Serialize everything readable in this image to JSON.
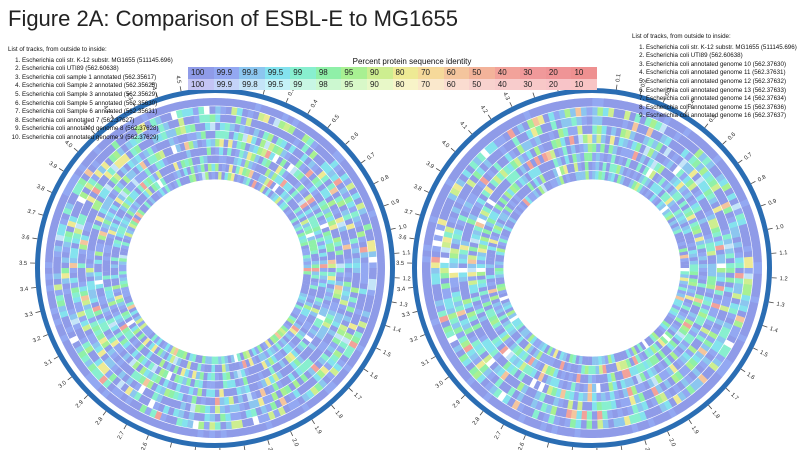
{
  "figure_title": "Figure 2A: Comparison of ESBL-E to MG1655",
  "legend": {
    "title": "Percent protein sequence identity",
    "values": [
      "100",
      "99.9",
      "99.8",
      "99.5",
      "99",
      "98",
      "95",
      "90",
      "80",
      "70",
      "60",
      "50",
      "40",
      "30",
      "20",
      "10"
    ],
    "row1_colors": [
      "#8f9be8",
      "#93a8f2",
      "#8cc6ef",
      "#84e2ee",
      "#88efcf",
      "#8ff0a8",
      "#a8f092",
      "#cdee90",
      "#eeea94",
      "#f6d99a",
      "#f4c59d",
      "#f3b39a",
      "#f2a29a",
      "#f0999a",
      "#ef9496",
      "#ee9090"
    ],
    "row2_colors": [
      "#c4c4f4",
      "#c4d3f8",
      "#c4e4f8",
      "#c4f2f8",
      "#c8f6e4",
      "#ccf8d0",
      "#d8f8c8",
      "#e8f8c8",
      "#f8f4c8",
      "#fae8cc",
      "#fadcd0",
      "#f8d2ce",
      "#f8cccc",
      "#f8c8c8",
      "#f8c4c8",
      "#f8c4c4"
    ]
  },
  "left_tracks": {
    "header": "List of tracks, from outside to inside:",
    "items": [
      "Escherichia coli str. K-12 substr. MG1655 (511145.696)",
      "Escherichia coli UTI89 (562.60638)",
      "Escherichia coli sample 1 annotated (562.35617)",
      "Escherichia coli Sample 2 annotated (562.35625)",
      "Escherichia coli Sample 3 annotated (562.35629)",
      "Escherichia coli Sample 5 annotated (562.35630)",
      "Escherichia coli Sample 6 annotated (562.35631)",
      "Escherichia coli annotated 7 (562.37627)",
      "Escherichia coli annotated genome 8 (562.37628)",
      "Escherichia coli annotated genome 9 (562.37629)"
    ]
  },
  "right_tracks": {
    "header": "List of tracks, from outside to inside:",
    "items": [
      "Escherichia coli str. K-12 substr. MG1655 (511145.696)",
      "Escherichia coli UTI89 (562.60638)",
      "Escherichia coli annotated genome 10 (562.37630)",
      "Escherichia coli annotated genome 11 (562.37631)",
      "Escherichia coli annotated genome 12 (562.37632)",
      "Escherichia coli annotated genome 13 (562.37633)",
      "Escherichia coli annotated genome 14 (562.37634)",
      "Escherichia coli annotated genome 15 (562.37636)",
      "Escherichia coli annotated genome 16 (562.37637)"
    ]
  },
  "circle_colors": {
    "backbone": "#2a6db3",
    "ticks": "#4a4a4a"
  },
  "left_circle": {
    "track_count": 10,
    "tick_labels": [
      "0.0",
      "0.1",
      "0.2",
      "0.3",
      "0.4",
      "0.5",
      "0.6",
      "0.7",
      "0.8",
      "0.9",
      "1.0",
      "1.1",
      "1.2",
      "1.3",
      "1.4",
      "1.5",
      "1.6",
      "1.7",
      "1.8",
      "1.9",
      "2.0",
      "2.1",
      "2.2",
      "2.3",
      "2.4",
      "2.5",
      "2.6",
      "2.7",
      "2.8",
      "2.9",
      "3.0",
      "3.1",
      "3.2",
      "3.3",
      "3.4",
      "3.5",
      "3.6",
      "3.7",
      "3.8",
      "3.9",
      "4.0",
      "4.1",
      "4.2",
      "4.3",
      "4.4",
      "4.5"
    ]
  },
  "right_circle": {
    "track_count": 9,
    "tick_labels": [
      "0.0",
      "0.1",
      "0.2",
      "0.3",
      "0.4",
      "0.5",
      "0.6",
      "0.7",
      "0.8",
      "0.9",
      "1.0",
      "1.1",
      "1.2",
      "1.3",
      "1.4",
      "1.5",
      "1.6",
      "1.7",
      "1.8",
      "1.9",
      "2.0",
      "2.1",
      "2.2",
      "2.3",
      "2.4",
      "2.5",
      "2.6",
      "2.7",
      "2.8",
      "2.9",
      "3.0",
      "3.1",
      "3.2",
      "3.3",
      "3.4",
      "3.5",
      "3.6",
      "3.7",
      "3.8",
      "3.9",
      "4.0",
      "4.1",
      "4.2",
      "4.3",
      "4.4",
      "4.5"
    ]
  }
}
